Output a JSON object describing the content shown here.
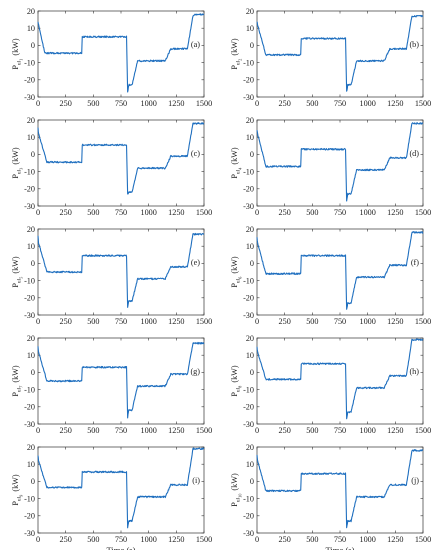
{
  "figure": {
    "line_color": "#1f6fbf",
    "xlabel": "Time (s)",
    "ylabel_unit": "(kW)",
    "ylabel_symbol": "P",
    "ylabel_subscript": "ul"
  },
  "chart_data": [
    {
      "type": "line",
      "panel": "(a)",
      "ylabel_index": "1",
      "xlim": [
        0,
        1500
      ],
      "ylim": [
        -30,
        20
      ],
      "xticks": [
        0,
        250,
        500,
        750,
        1000,
        1250,
        1500
      ],
      "yticks": [
        -30,
        -20,
        -10,
        0,
        10,
        20
      ],
      "x": [
        0,
        5,
        60,
        80,
        150,
        300,
        395,
        400,
        700,
        800,
        810,
        820,
        850,
        900,
        1000,
        1150,
        1200,
        1350,
        1400,
        1410,
        1500
      ],
      "y": [
        14,
        12,
        -4,
        -4.5,
        -4.5,
        -4.5,
        -4.5,
        5,
        5,
        5,
        -27,
        -23,
        -23,
        -9,
        -9,
        -9,
        -2,
        -2,
        17,
        18,
        18
      ]
    },
    {
      "type": "line",
      "panel": "(b)",
      "ylabel_index": "2",
      "xlim": [
        0,
        1500
      ],
      "ylim": [
        -30,
        20
      ],
      "xticks": [
        0,
        250,
        500,
        750,
        1000,
        1250,
        1500
      ],
      "yticks": [
        -30,
        -20,
        -10,
        0,
        10,
        20
      ],
      "x": [
        0,
        5,
        80,
        150,
        300,
        395,
        400,
        700,
        800,
        810,
        820,
        850,
        900,
        1000,
        1150,
        1200,
        1350,
        1400,
        1410,
        1500
      ],
      "y": [
        14,
        12,
        -5.5,
        -5.5,
        -5.5,
        -5.5,
        4,
        4,
        4,
        -27,
        -23,
        -23,
        -9,
        -9,
        -9,
        -2,
        -2,
        17,
        17,
        17
      ]
    },
    {
      "type": "line",
      "panel": "(c)",
      "ylabel_index": "3",
      "xlim": [
        0,
        1500
      ],
      "ylim": [
        -30,
        20
      ],
      "xticks": [
        0,
        250,
        500,
        750,
        1000,
        1250,
        1500
      ],
      "yticks": [
        -30,
        -20,
        -10,
        0,
        10,
        20
      ],
      "x": [
        0,
        5,
        80,
        150,
        300,
        395,
        400,
        700,
        800,
        810,
        820,
        850,
        900,
        1000,
        1150,
        1200,
        1350,
        1400,
        1410,
        1500
      ],
      "y": [
        16,
        12,
        -4.5,
        -4.5,
        -4.5,
        -4.5,
        5.5,
        5.5,
        5.5,
        -23,
        -22,
        -22,
        -8,
        -8,
        -8,
        -1,
        -1,
        18,
        18,
        18
      ]
    },
    {
      "type": "line",
      "panel": "(d)",
      "ylabel_index": "4",
      "xlim": [
        0,
        1500
      ],
      "ylim": [
        -30,
        20
      ],
      "xticks": [
        0,
        250,
        500,
        750,
        1000,
        1250,
        1500
      ],
      "yticks": [
        -30,
        -20,
        -10,
        0,
        10,
        20
      ],
      "x": [
        0,
        5,
        80,
        150,
        300,
        395,
        400,
        700,
        800,
        810,
        820,
        850,
        900,
        1000,
        1150,
        1200,
        1350,
        1400,
        1410,
        1500
      ],
      "y": [
        14,
        12,
        -7,
        -7,
        -7,
        -7,
        3,
        3,
        3,
        -27,
        -23,
        -23,
        -9,
        -9,
        -9,
        -2,
        -2,
        18,
        18,
        18
      ]
    },
    {
      "type": "line",
      "panel": "(e)",
      "ylabel_index": "5",
      "xlim": [
        0,
        1500
      ],
      "ylim": [
        -30,
        20
      ],
      "xticks": [
        0,
        250,
        500,
        750,
        1000,
        1250,
        1500
      ],
      "yticks": [
        -30,
        -20,
        -10,
        0,
        10,
        20
      ],
      "x": [
        0,
        5,
        80,
        150,
        300,
        395,
        400,
        700,
        800,
        810,
        820,
        850,
        900,
        1000,
        1150,
        1200,
        1350,
        1400,
        1410,
        1500
      ],
      "y": [
        16,
        12,
        -5,
        -5,
        -5,
        -5,
        4.5,
        4.5,
        4.5,
        -26,
        -22,
        -22,
        -9,
        -9,
        -9,
        -2,
        -2,
        17,
        17,
        17
      ]
    },
    {
      "type": "line",
      "panel": "(f)",
      "ylabel_index": "6",
      "xlim": [
        0,
        1500
      ],
      "ylim": [
        -30,
        20
      ],
      "xticks": [
        0,
        250,
        500,
        750,
        1000,
        1250,
        1500
      ],
      "yticks": [
        -30,
        -20,
        -10,
        0,
        10,
        20
      ],
      "x": [
        0,
        5,
        80,
        150,
        300,
        395,
        400,
        700,
        800,
        810,
        820,
        850,
        900,
        1000,
        1150,
        1200,
        1350,
        1400,
        1410,
        1500
      ],
      "y": [
        15,
        12,
        -6,
        -6,
        -6,
        -6,
        4.5,
        4.5,
        4.5,
        -27,
        -23,
        -23,
        -8,
        -8,
        -8,
        -1,
        -1,
        18,
        18,
        18
      ]
    },
    {
      "type": "line",
      "panel": "(g)",
      "ylabel_index": "7",
      "xlim": [
        0,
        1500
      ],
      "ylim": [
        -30,
        20
      ],
      "xticks": [
        0,
        250,
        500,
        750,
        1000,
        1250,
        1500
      ],
      "yticks": [
        -30,
        -20,
        -10,
        0,
        10,
        20
      ],
      "x": [
        0,
        5,
        80,
        150,
        300,
        395,
        400,
        700,
        800,
        810,
        820,
        850,
        900,
        1000,
        1150,
        1200,
        1350,
        1400,
        1410,
        1500
      ],
      "y": [
        15,
        12,
        -5,
        -5,
        -5,
        -5,
        3,
        3,
        3,
        -26,
        -22,
        -22,
        -8,
        -8,
        -8,
        -1,
        -1,
        17,
        17,
        17
      ]
    },
    {
      "type": "line",
      "panel": "(h)",
      "ylabel_index": "8",
      "xlim": [
        0,
        1500
      ],
      "ylim": [
        -30,
        20
      ],
      "xticks": [
        0,
        250,
        500,
        750,
        1000,
        1250,
        1500
      ],
      "yticks": [
        -30,
        -20,
        -10,
        0,
        10,
        20
      ],
      "x": [
        0,
        5,
        80,
        150,
        300,
        395,
        400,
        700,
        800,
        810,
        820,
        850,
        900,
        1000,
        1150,
        1200,
        1350,
        1400,
        1410,
        1500
      ],
      "y": [
        15,
        12,
        -4,
        -4,
        -4,
        -4,
        5,
        5,
        5,
        -27,
        -23,
        -23,
        -9,
        -9,
        -9,
        -2,
        -2,
        19,
        19,
        19
      ]
    },
    {
      "type": "line",
      "panel": "(i)",
      "ylabel_index": "9",
      "xlim": [
        0,
        1500
      ],
      "ylim": [
        -30,
        20
      ],
      "xticks": [
        0,
        250,
        500,
        750,
        1000,
        1250,
        1500
      ],
      "yticks": [
        -30,
        -20,
        -10,
        0,
        10,
        20
      ],
      "x": [
        0,
        5,
        80,
        150,
        300,
        395,
        400,
        700,
        800,
        810,
        820,
        850,
        900,
        1000,
        1150,
        1200,
        1350,
        1400,
        1410,
        1500
      ],
      "y": [
        15,
        12,
        -3.5,
        -3.5,
        -3.5,
        -3.5,
        5.5,
        5.5,
        5.5,
        -27,
        -23,
        -23,
        -9,
        -9,
        -9,
        -2,
        -2,
        19,
        19,
        19
      ]
    },
    {
      "type": "line",
      "panel": "(j)",
      "ylabel_index": "10",
      "xlim": [
        0,
        1500
      ],
      "ylim": [
        -30,
        20
      ],
      "xticks": [
        0,
        250,
        500,
        750,
        1000,
        1250,
        1500
      ],
      "yticks": [
        -30,
        -20,
        -10,
        0,
        10,
        20
      ],
      "x": [
        0,
        5,
        80,
        150,
        300,
        395,
        400,
        700,
        800,
        810,
        820,
        850,
        900,
        1000,
        1150,
        1200,
        1350,
        1400,
        1410,
        1500
      ],
      "y": [
        15,
        12,
        -5.5,
        -5.5,
        -5.5,
        -5.5,
        4.5,
        4.5,
        4.5,
        -27,
        -23,
        -23,
        -9,
        -9,
        -9,
        -2,
        -2,
        18,
        18,
        18
      ]
    }
  ]
}
